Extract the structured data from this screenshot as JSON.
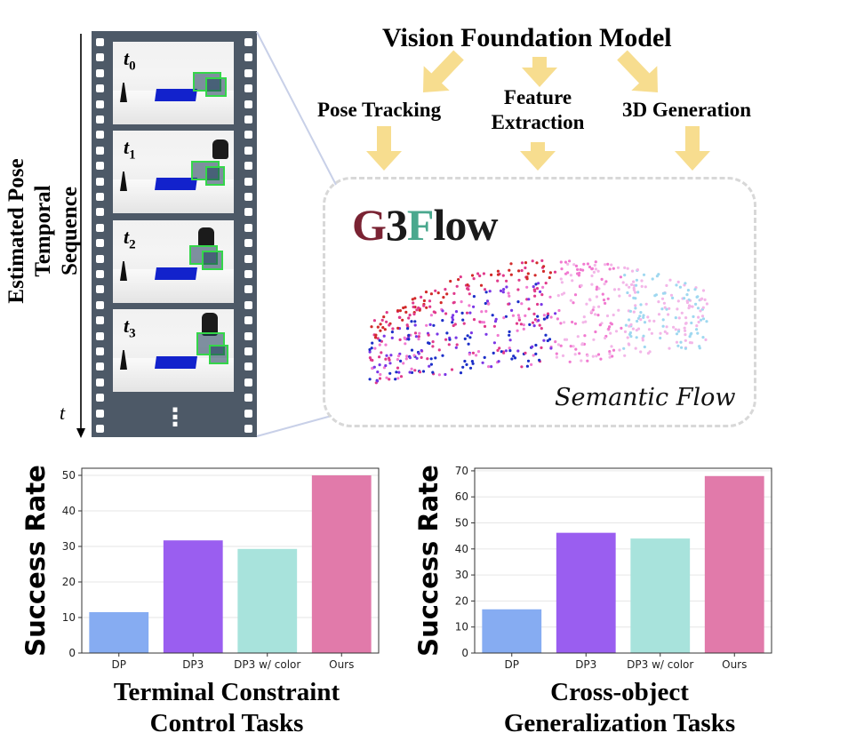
{
  "header": {
    "title": "Vision Foundation Model",
    "branches": [
      "Pose Tracking",
      "Feature\nExtraction",
      "3D Generation"
    ]
  },
  "brand": {
    "letters": [
      {
        "ch": "G",
        "color": "#7a2333"
      },
      {
        "ch": "3",
        "color": "#1a1a1a"
      },
      {
        "ch": "F",
        "color": "#4aa88e"
      },
      {
        "ch": "low",
        "color": "#1a1a1a"
      }
    ]
  },
  "flow_caption": "Semantic Flow",
  "timeline": {
    "side_label": "Estimated Pose Temporal\nSequence",
    "axis_label": "t",
    "frames": [
      {
        "t": "t",
        "sub": "0"
      },
      {
        "t": "t",
        "sub": "1"
      },
      {
        "t": "t",
        "sub": "2"
      },
      {
        "t": "t",
        "sub": "3"
      }
    ],
    "ellipsis": "⋮"
  },
  "colors": {
    "arrow": "#f7dd8f",
    "film": "#4d5967",
    "bar_dp": "#86acf2",
    "bar_dp3": "#9a5ef0",
    "bar_dp3color": "#a8e3dc",
    "bar_ours": "#e17aaa"
  },
  "chart_data": [
    {
      "type": "bar",
      "title": "Terminal Constraint\nControl Tasks",
      "ylabel": "Success Rate",
      "categories": [
        "DP",
        "DP3",
        "DP3 w/ color",
        "Ours"
      ],
      "values": [
        11.5,
        31.7,
        29.3,
        50.0
      ],
      "ylim": [
        0,
        52
      ],
      "yticks": [
        "0",
        "10",
        "20",
        "30",
        "40",
        "50"
      ],
      "grid": true
    },
    {
      "type": "bar",
      "title": "Cross-object\nGeneralization Tasks",
      "ylabel": "Success Rate",
      "categories": [
        "DP",
        "DP3",
        "DP3 w/ color",
        "Ours"
      ],
      "values": [
        16.8,
        46.2,
        44.0,
        68.0
      ],
      "ylim": [
        0,
        71
      ],
      "yticks": [
        "0",
        "10",
        "20",
        "30",
        "40",
        "50",
        "60",
        "70"
      ],
      "grid": true
    }
  ]
}
